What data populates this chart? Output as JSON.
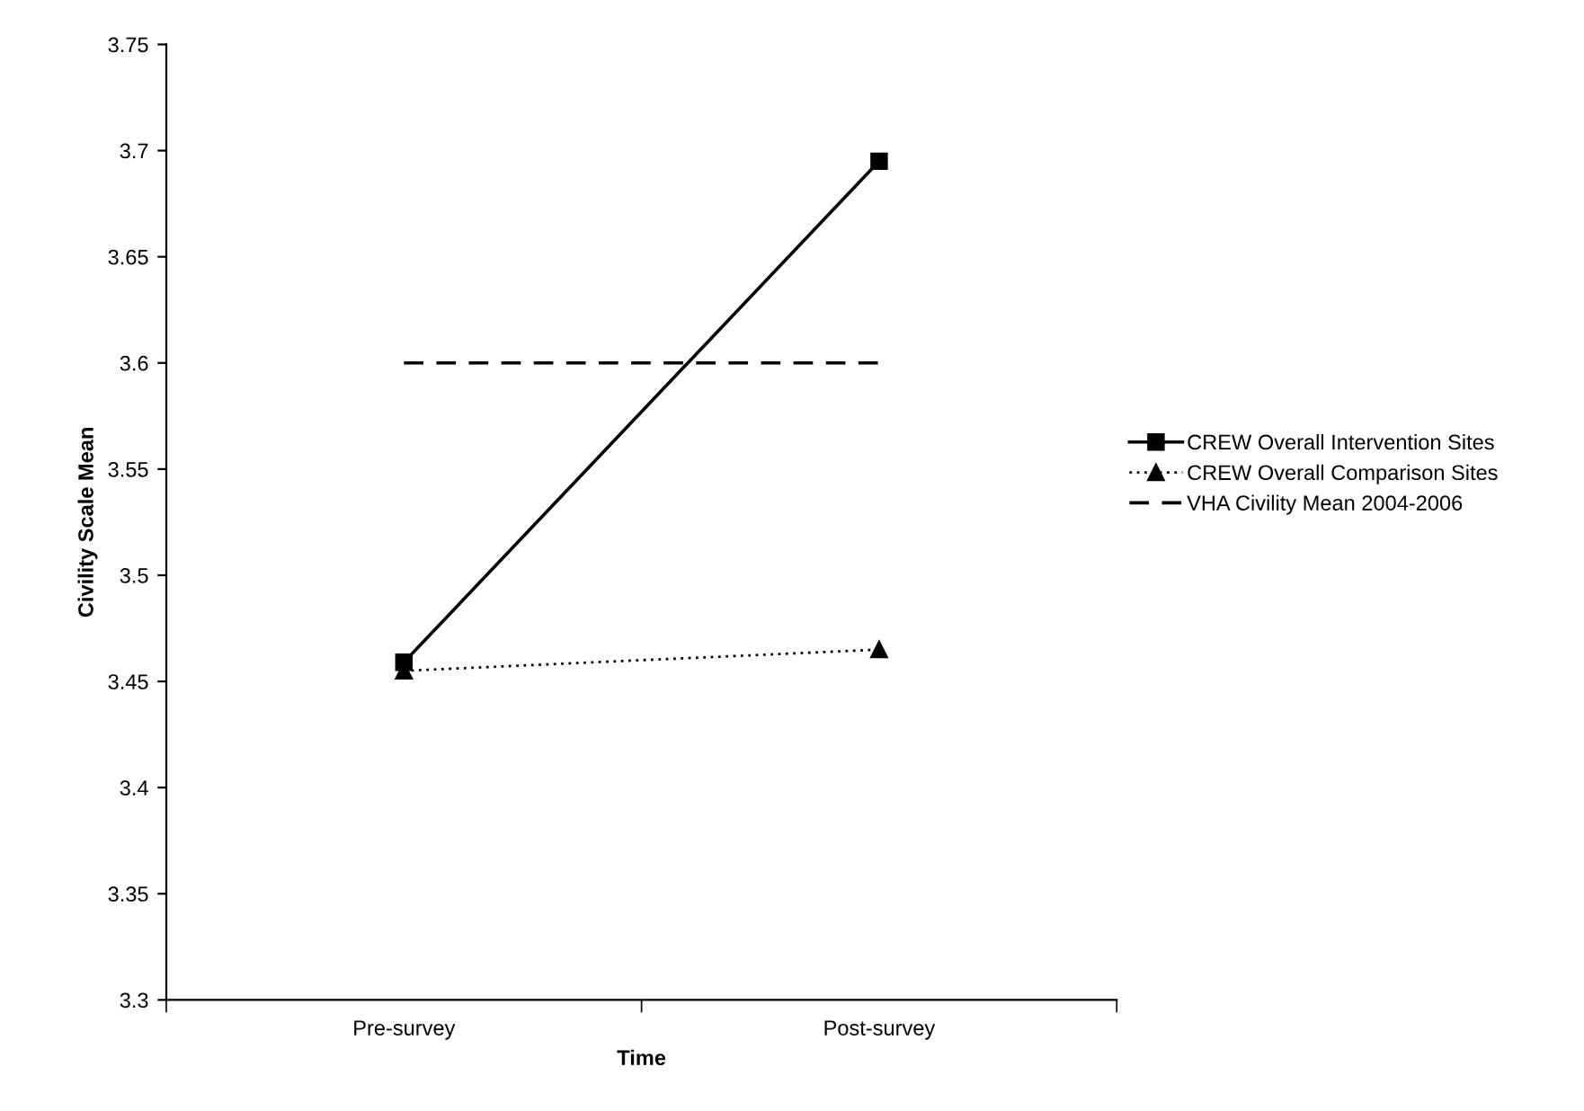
{
  "chart_data": {
    "type": "line",
    "xlabel": "Time",
    "ylabel": "Civility Scale Mean",
    "categories": [
      "Pre-survey",
      "Post-survey"
    ],
    "series": [
      {
        "name": "CREW Overall Intervention Sites",
        "color": "#000000",
        "values": [
          3.459,
          3.695
        ],
        "marker": "square",
        "line_style": "solid"
      },
      {
        "name": "CREW Overall Comparison Sites",
        "color": "#000000",
        "values": [
          3.455,
          3.465
        ],
        "marker": "triangle",
        "line_style": "dotted"
      },
      {
        "name": "VHA Civility Mean 2004-2006",
        "color": "#000000",
        "values": [
          3.6,
          3.6
        ],
        "marker": "none",
        "line_style": "dashed"
      }
    ],
    "ylim": [
      3.3,
      3.75
    ],
    "yticks": [
      3.3,
      3.35,
      3.4,
      3.45,
      3.5,
      3.55,
      3.6,
      3.65,
      3.7,
      3.75
    ],
    "grid": false,
    "legend": "right"
  }
}
